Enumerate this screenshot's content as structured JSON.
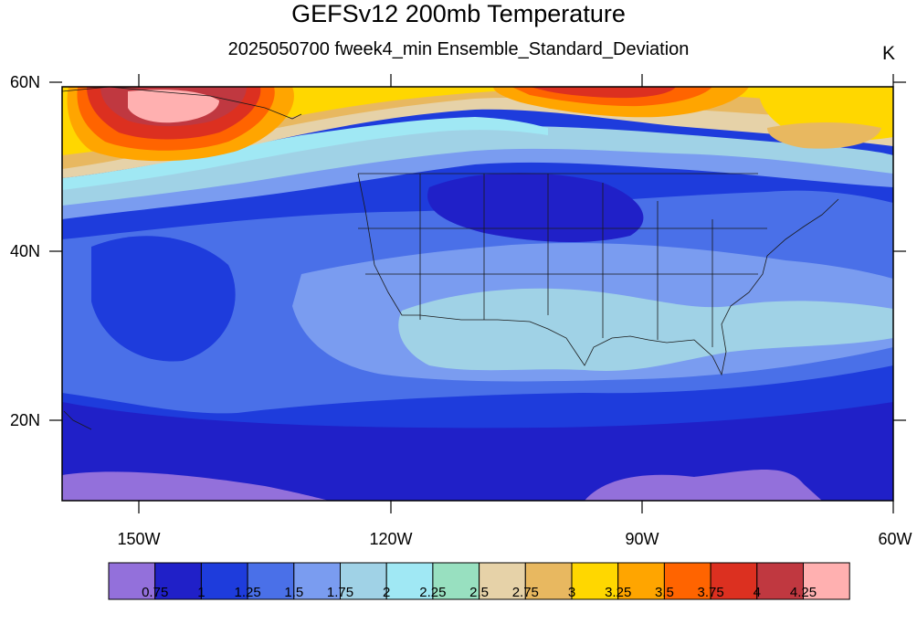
{
  "title": "GEFSv12 200mb Temperature",
  "subtitle": "2025050700 fweek4_min Ensemble_Standard_Deviation",
  "units": "K",
  "lat_labels": [
    "60N",
    "40N",
    "20N"
  ],
  "lon_labels": [
    "150W",
    "120W",
    "90W",
    "60W"
  ],
  "colorbar": {
    "colors": [
      "#9370DB",
      "#2020C8",
      "#1E3CDC",
      "#4A70E8",
      "#7A9CF0",
      "#A0D2E6",
      "#A0E8F4",
      "#98E0C0",
      "#E6D2A8",
      "#E8B860",
      "#FFD700",
      "#FFA500",
      "#FF6400",
      "#DC3020",
      "#C03840",
      "#FFB0B0"
    ],
    "labels": [
      "0.75",
      "1",
      "1.25",
      "1.5",
      "1.75",
      "2",
      "2.25",
      "2.5",
      "2.75",
      "3",
      "3.25",
      "3.5",
      "3.75",
      "4",
      "4.25"
    ]
  }
}
